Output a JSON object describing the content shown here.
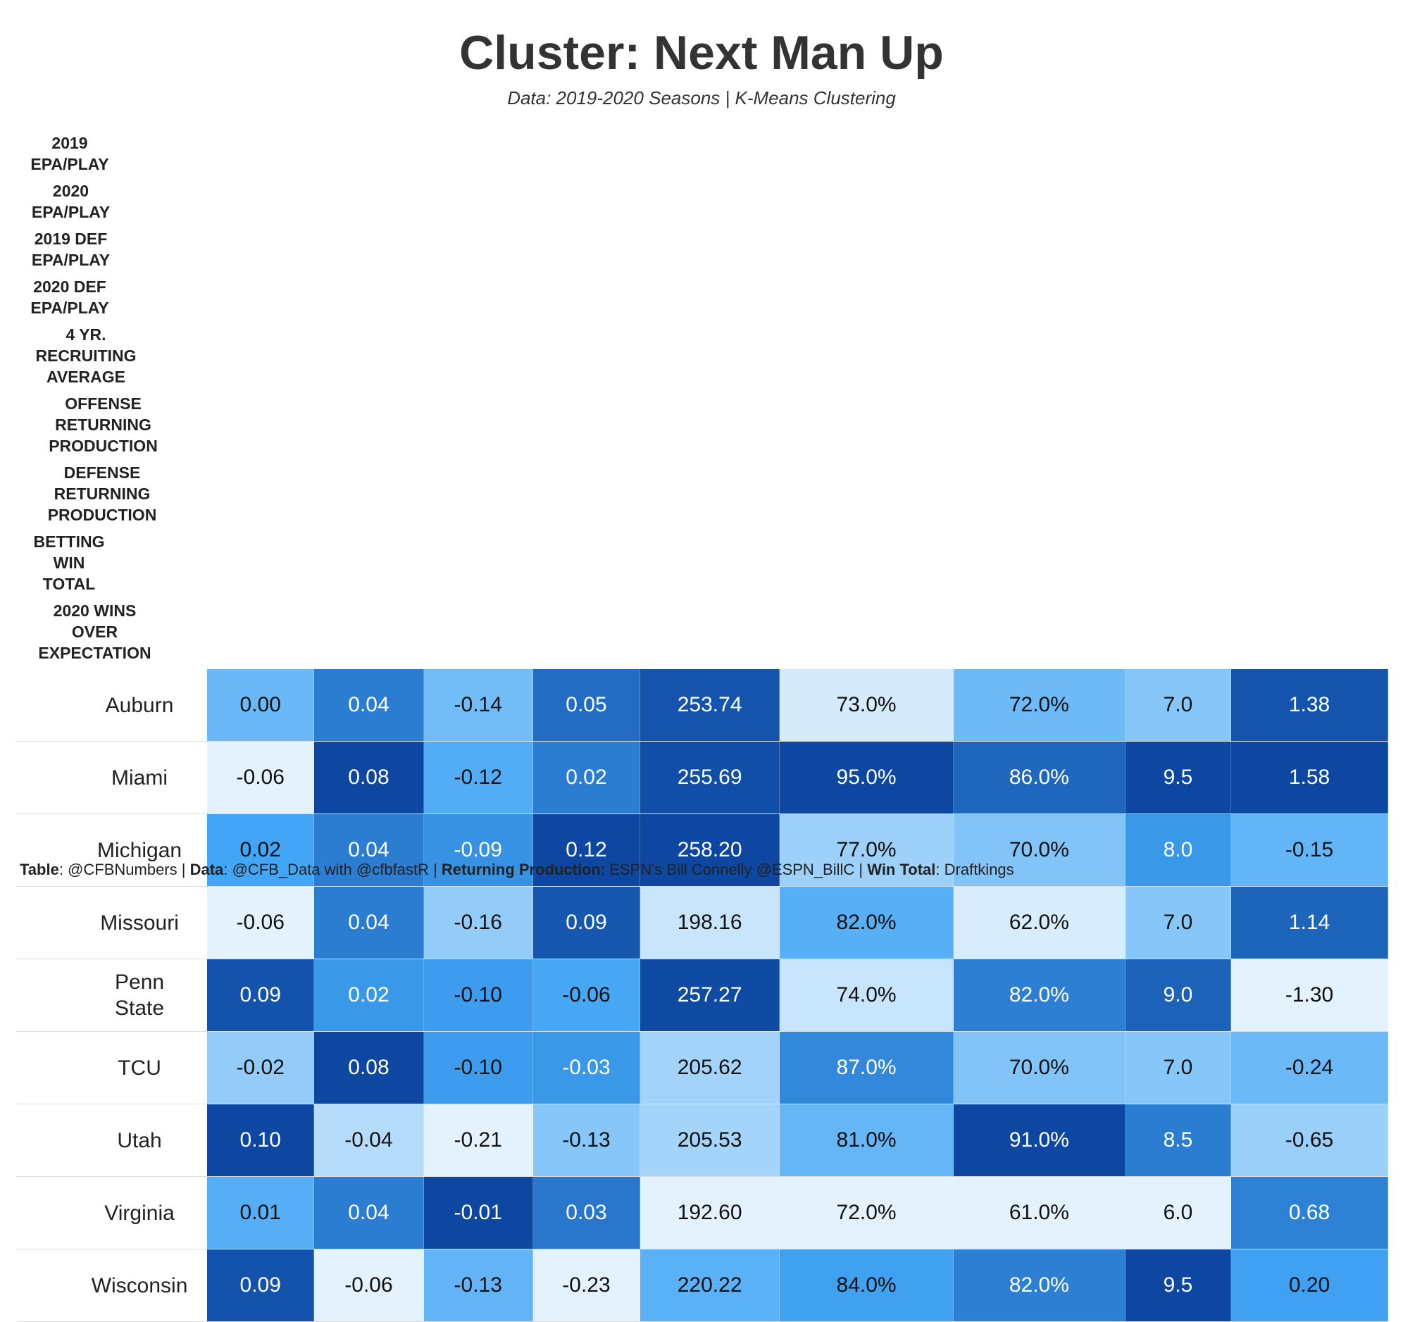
{
  "header": {
    "title": "Cluster: Next Man Up",
    "subtitle": "Data: 2019-2020 Seasons | K-Means Clustering"
  },
  "table": {
    "columns": [
      "",
      "2019\nEPA/PLAY",
      "2020\nEPA/PLAY",
      "2019 DEF\nEPA/PLAY",
      "2020 DEF\nEPA/PLAY",
      "4 YR.\nRECRUITING\nAVERAGE",
      "OFFENSE\nRETURNING\nPRODUCTION",
      "DEFENSE\nRETURNING\nPRODUCTION",
      "BETTING\nWIN\nTOTAL",
      "2020 WINS\nOVER\nEXPECTATION"
    ],
    "rows": [
      [
        "Auburn",
        "0.00",
        "0.04",
        "-0.14",
        "0.05",
        "253.74",
        "73.0%",
        "72.0%",
        "7.0",
        "1.38"
      ],
      [
        "Miami",
        "-0.06",
        "0.08",
        "-0.12",
        "0.02",
        "255.69",
        "95.0%",
        "86.0%",
        "9.5",
        "1.58"
      ],
      [
        "Michigan",
        "0.02",
        "0.04",
        "-0.09",
        "0.12",
        "258.20",
        "77.0%",
        "70.0%",
        "8.0",
        "-0.15"
      ],
      [
        "Missouri",
        "-0.06",
        "0.04",
        "-0.16",
        "0.09",
        "198.16",
        "82.0%",
        "62.0%",
        "7.0",
        "1.14"
      ],
      [
        "Penn\nState",
        "0.09",
        "0.02",
        "-0.10",
        "-0.06",
        "257.27",
        "74.0%",
        "82.0%",
        "9.0",
        "-1.30"
      ],
      [
        "TCU",
        "-0.02",
        "0.08",
        "-0.10",
        "-0.03",
        "205.62",
        "87.0%",
        "70.0%",
        "7.0",
        "-0.24"
      ],
      [
        "Utah",
        "0.10",
        "-0.04",
        "-0.21",
        "-0.13",
        "205.53",
        "81.0%",
        "91.0%",
        "8.5",
        "-0.65"
      ],
      [
        "Virginia",
        "0.01",
        "0.04",
        "-0.01",
        "0.03",
        "192.60",
        "72.0%",
        "61.0%",
        "6.0",
        "0.68"
      ],
      [
        "Wisconsin",
        "0.09",
        "-0.06",
        "-0.13",
        "-0.23",
        "220.22",
        "84.0%",
        "82.0%",
        "9.5",
        "0.20"
      ]
    ],
    "scale_colors": [
      "#e3f2fd",
      "#42a5f5",
      "#0d47a1"
    ]
  },
  "footer": {
    "separator": " | ",
    "items": [
      {
        "label": "Table",
        "text": ": @CFBNumbers"
      },
      {
        "label": "Data",
        "text": ": @CFB_Data with @cfbfastR"
      },
      {
        "label": "Returning Production",
        "text": ": ESPN's Bill Connelly @ESPN_BillC"
      },
      {
        "label": "Win Total",
        "text": ": Draftkings"
      }
    ]
  }
}
